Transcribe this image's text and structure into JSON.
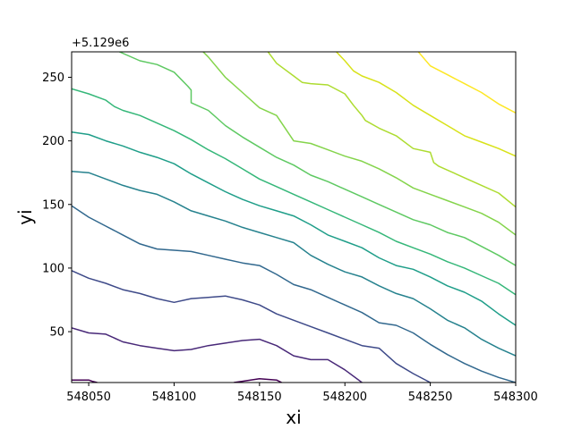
{
  "chart_data": {
    "type": "contour",
    "title": "",
    "xlabel": "xi",
    "ylabel": "yi",
    "y_offset_label": "+5.129e6",
    "xlim": [
      548040,
      548300
    ],
    "ylim": [
      10,
      270
    ],
    "x_ticks": [
      548050,
      548100,
      548150,
      548200,
      548250,
      548300
    ],
    "y_ticks": [
      50,
      100,
      150,
      200,
      250
    ],
    "grid": false,
    "legend": "none",
    "contours": [
      {
        "level": 1,
        "color": "#440154",
        "segments": [
          [
            [
              548040,
              12
            ],
            [
              548050,
              12
            ],
            [
              548052,
              11
            ],
            [
              548055,
              10
            ]
          ],
          [
            [
              548135,
              10
            ],
            [
              548140,
              11
            ],
            [
              548150,
              13
            ],
            [
              548160,
              12
            ],
            [
              548163,
              10
            ]
          ]
        ]
      },
      {
        "level": 2,
        "color": "#482878",
        "segments": [
          [
            [
              548040,
              53
            ],
            [
              548050,
              49
            ],
            [
              548060,
              48
            ],
            [
              548070,
              42
            ],
            [
              548080,
              39
            ],
            [
              548090,
              37
            ],
            [
              548100,
              35
            ],
            [
              548110,
              36
            ],
            [
              548120,
              39
            ],
            [
              548130,
              41
            ],
            [
              548140,
              43
            ],
            [
              548150,
              44
            ],
            [
              548160,
              39
            ],
            [
              548170,
              31
            ],
            [
              548180,
              28
            ],
            [
              548190,
              28
            ],
            [
              548200,
              20
            ],
            [
              548210,
              10
            ]
          ]
        ]
      },
      {
        "level": 3,
        "color": "#3e4a89",
        "segments": [
          [
            [
              548040,
              98
            ],
            [
              548050,
              92
            ],
            [
              548060,
              88
            ],
            [
              548070,
              83
            ],
            [
              548080,
              80
            ],
            [
              548090,
              76
            ],
            [
              548100,
              73
            ],
            [
              548110,
              76
            ],
            [
              548120,
              77
            ],
            [
              548130,
              78
            ],
            [
              548140,
              75
            ],
            [
              548150,
              71
            ],
            [
              548160,
              64
            ],
            [
              548170,
              59
            ],
            [
              548180,
              54
            ],
            [
              548190,
              49
            ],
            [
              548200,
              44
            ],
            [
              548210,
              39
            ],
            [
              548220,
              37
            ],
            [
              548230,
              25
            ],
            [
              548240,
              17
            ],
            [
              548250,
              10
            ]
          ]
        ]
      },
      {
        "level": 4,
        "color": "#31688e",
        "segments": [
          [
            [
              548040,
              149
            ],
            [
              548050,
              140
            ],
            [
              548060,
              133
            ],
            [
              548070,
              126
            ],
            [
              548080,
              119
            ],
            [
              548090,
              115
            ],
            [
              548100,
              114
            ],
            [
              548110,
              113
            ],
            [
              548120,
              110
            ],
            [
              548130,
              107
            ],
            [
              548140,
              104
            ],
            [
              548150,
              102
            ],
            [
              548160,
              95
            ],
            [
              548170,
              87
            ],
            [
              548180,
              83
            ],
            [
              548190,
              77
            ],
            [
              548200,
              71
            ],
            [
              548210,
              65
            ],
            [
              548220,
              57
            ],
            [
              548230,
              55
            ],
            [
              548240,
              49
            ],
            [
              548250,
              40
            ],
            [
              548260,
              32
            ],
            [
              548270,
              25
            ],
            [
              548280,
              19
            ],
            [
              548290,
              14
            ],
            [
              548300,
              10
            ]
          ]
        ]
      },
      {
        "level": 5,
        "color": "#26828e",
        "segments": [
          [
            [
              548040,
              176
            ],
            [
              548050,
              175
            ],
            [
              548060,
              170
            ],
            [
              548070,
              165
            ],
            [
              548080,
              161
            ],
            [
              548090,
              158
            ],
            [
              548100,
              152
            ],
            [
              548110,
              145
            ],
            [
              548120,
              141
            ],
            [
              548130,
              137
            ],
            [
              548140,
              132
            ],
            [
              548150,
              128
            ],
            [
              548160,
              124
            ],
            [
              548170,
              120
            ],
            [
              548180,
              110
            ],
            [
              548190,
              103
            ],
            [
              548200,
              97
            ],
            [
              548210,
              93
            ],
            [
              548220,
              86
            ],
            [
              548230,
              80
            ],
            [
              548240,
              76
            ],
            [
              548250,
              68
            ],
            [
              548260,
              59
            ],
            [
              548270,
              53
            ],
            [
              548280,
              44
            ],
            [
              548290,
              37
            ],
            [
              548300,
              31
            ]
          ]
        ]
      },
      {
        "level": 6,
        "color": "#1f9e89",
        "segments": [
          [
            [
              548040,
              207
            ],
            [
              548050,
              205
            ],
            [
              548060,
              200
            ],
            [
              548070,
              196
            ],
            [
              548080,
              191
            ],
            [
              548090,
              187
            ],
            [
              548100,
              182
            ],
            [
              548110,
              174
            ],
            [
              548120,
              167
            ],
            [
              548130,
              160
            ],
            [
              548140,
              154
            ],
            [
              548150,
              149
            ],
            [
              548160,
              145
            ],
            [
              548170,
              141
            ],
            [
              548180,
              134
            ],
            [
              548190,
              126
            ],
            [
              548200,
              121
            ],
            [
              548210,
              116
            ],
            [
              548220,
              108
            ],
            [
              548230,
              102
            ],
            [
              548240,
              99
            ],
            [
              548250,
              93
            ],
            [
              548260,
              86
            ],
            [
              548270,
              81
            ],
            [
              548280,
              74
            ],
            [
              548290,
              64
            ],
            [
              548300,
              55
            ]
          ]
        ]
      },
      {
        "level": 7,
        "color": "#35b779",
        "segments": [
          [
            [
              548040,
              241
            ],
            [
              548050,
              237
            ],
            [
              548060,
              232
            ],
            [
              548065,
              227
            ],
            [
              548070,
              224
            ],
            [
              548080,
              220
            ],
            [
              548090,
              214
            ],
            [
              548100,
              208
            ],
            [
              548110,
              201
            ],
            [
              548120,
              193
            ],
            [
              548130,
              186
            ],
            [
              548140,
              178
            ],
            [
              548150,
              170
            ],
            [
              548160,
              164
            ],
            [
              548170,
              158
            ],
            [
              548180,
              152
            ],
            [
              548190,
              146
            ],
            [
              548200,
              140
            ],
            [
              548210,
              134
            ],
            [
              548220,
              128
            ],
            [
              548230,
              121
            ],
            [
              548240,
              116
            ],
            [
              548250,
              111
            ],
            [
              548260,
              105
            ],
            [
              548270,
              100
            ],
            [
              548280,
              94
            ],
            [
              548290,
              88
            ],
            [
              548300,
              79
            ]
          ]
        ]
      },
      {
        "level": 8,
        "color": "#5ec962",
        "segments": [
          [
            [
              548068,
              270
            ],
            [
              548080,
              263
            ],
            [
              548090,
              260
            ],
            [
              548100,
              254
            ],
            [
              548108,
              243
            ],
            [
              548110,
              240
            ],
            [
              548110,
              230
            ],
            [
              548120,
              224
            ],
            [
              548125,
              218
            ],
            [
              548130,
              212
            ],
            [
              548140,
              203
            ],
            [
              548150,
              195
            ],
            [
              548160,
              187
            ],
            [
              548170,
              181
            ],
            [
              548180,
              173
            ],
            [
              548190,
              168
            ],
            [
              548200,
              162
            ],
            [
              548210,
              156
            ],
            [
              548220,
              150
            ],
            [
              548230,
              144
            ],
            [
              548240,
              138
            ],
            [
              548250,
              134
            ],
            [
              548260,
              128
            ],
            [
              548270,
              124
            ],
            [
              548280,
              117
            ],
            [
              548290,
              110
            ],
            [
              548300,
              102
            ]
          ]
        ]
      },
      {
        "level": 9,
        "color": "#84d44b",
        "segments": [
          [
            [
              548117,
              270
            ],
            [
              548120,
              266
            ],
            [
              548130,
              250
            ],
            [
              548140,
              238
            ],
            [
              548150,
              226
            ],
            [
              548160,
              220
            ],
            [
              548165,
              210
            ],
            [
              548170,
              200
            ],
            [
              548180,
              198
            ],
            [
              548190,
              193
            ],
            [
              548200,
              188
            ],
            [
              548210,
              184
            ],
            [
              548220,
              178
            ],
            [
              548230,
              171
            ],
            [
              548240,
              163
            ],
            [
              548250,
              158
            ],
            [
              548260,
              153
            ],
            [
              548270,
              148
            ],
            [
              548280,
              143
            ],
            [
              548290,
              136
            ],
            [
              548300,
              126
            ]
          ]
        ]
      },
      {
        "level": 10,
        "color": "#addc30",
        "segments": [
          [
            [
              548155,
              270
            ],
            [
              548160,
              261
            ],
            [
              548170,
              251
            ],
            [
              548175,
              246
            ],
            [
              548180,
              245
            ],
            [
              548190,
              244
            ],
            [
              548200,
              237
            ],
            [
              548205,
              228
            ],
            [
              548210,
              220
            ],
            [
              548212,
              216
            ],
            [
              548220,
              210
            ],
            [
              548230,
              204
            ],
            [
              548240,
              194
            ],
            [
              548250,
              191
            ],
            [
              548252,
              183
            ],
            [
              548255,
              180
            ],
            [
              548260,
              177
            ],
            [
              548270,
              171
            ],
            [
              548280,
              165
            ],
            [
              548290,
              159
            ],
            [
              548300,
              148
            ]
          ]
        ]
      },
      {
        "level": 11,
        "color": "#d8e219",
        "segments": [
          [
            [
              548195,
              270
            ],
            [
              548200,
              263
            ],
            [
              548205,
              255
            ],
            [
              548210,
              251
            ],
            [
              548220,
              246
            ],
            [
              548230,
              238
            ],
            [
              548240,
              228
            ],
            [
              548250,
              220
            ],
            [
              548260,
              212
            ],
            [
              548270,
              204
            ],
            [
              548280,
              199
            ],
            [
              548290,
              194
            ],
            [
              548300,
              188
            ],
            [
              548305,
              178
            ]
          ]
        ]
      },
      {
        "level": 12,
        "color": "#fde725",
        "segments": [
          [
            [
              548243,
              270
            ],
            [
              548250,
              259
            ],
            [
              548260,
              252
            ],
            [
              548270,
              245
            ],
            [
              548280,
              238
            ],
            [
              548290,
              229
            ],
            [
              548300,
              222
            ],
            [
              548310,
              216
            ],
            [
              548320,
              211
            ]
          ]
        ]
      }
    ]
  }
}
